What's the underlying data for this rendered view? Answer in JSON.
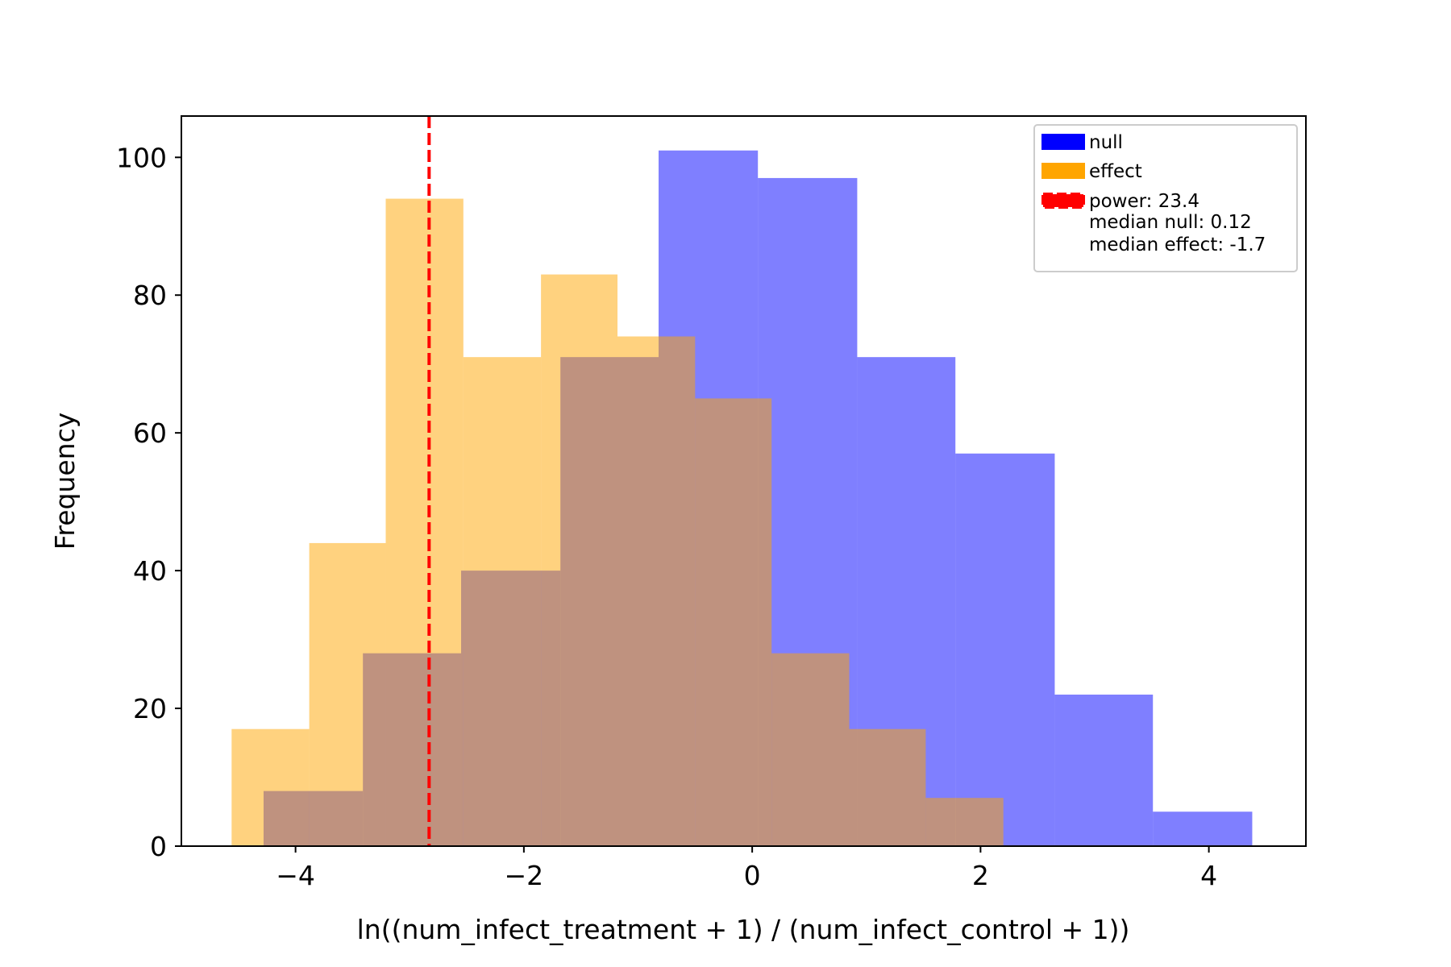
{
  "chart_data": {
    "type": "histogram",
    "xlabel": "ln((num_infect_treatment + 1) / (num_infect_control + 1))",
    "ylabel": "Frequency",
    "xlim": [
      -5.0,
      4.85
    ],
    "ylim": [
      0,
      106
    ],
    "xticks": [
      -4,
      -2,
      0,
      2,
      4
    ],
    "xtick_labels": [
      "−4",
      "−2",
      "0",
      "2",
      "4"
    ],
    "yticks": [
      0,
      20,
      40,
      60,
      80,
      100
    ],
    "ytick_labels": [
      "0",
      "20",
      "40",
      "60",
      "80",
      "100"
    ],
    "series": [
      {
        "name": "null",
        "color": "#0000ff",
        "alpha": 0.5,
        "bin_edges": [
          -4.28,
          -3.41,
          -2.55,
          -1.68,
          -0.82,
          0.05,
          0.92,
          1.78,
          2.65,
          3.51,
          4.38
        ],
        "counts": [
          8,
          28,
          40,
          71,
          101,
          97,
          71,
          57,
          22,
          5
        ]
      },
      {
        "name": "effect",
        "color": "#ffa500",
        "alpha": 0.5,
        "bin_edges": [
          -4.56,
          -3.88,
          -3.21,
          -2.53,
          -1.85,
          -1.18,
          -0.5,
          0.17,
          0.85,
          1.52,
          2.2
        ],
        "counts": [
          17,
          44,
          94,
          71,
          83,
          74,
          65,
          28,
          17,
          7
        ]
      }
    ],
    "vline": {
      "x": -2.83,
      "color": "#ff0000",
      "style": "dashed",
      "label": "power: 23.4"
    },
    "legend": {
      "position": "top-right",
      "entries": [
        {
          "label": "null",
          "color": "#0000ff",
          "kind": "patch"
        },
        {
          "label": "effect",
          "color": "#ffa500",
          "kind": "patch"
        },
        {
          "label": "power: 23.4",
          "color": "#ff0000",
          "kind": "dashed-patch"
        },
        {
          "label": "median null: 0.12",
          "kind": "text"
        },
        {
          "label": "median effect: -1.7",
          "kind": "text"
        }
      ]
    }
  }
}
